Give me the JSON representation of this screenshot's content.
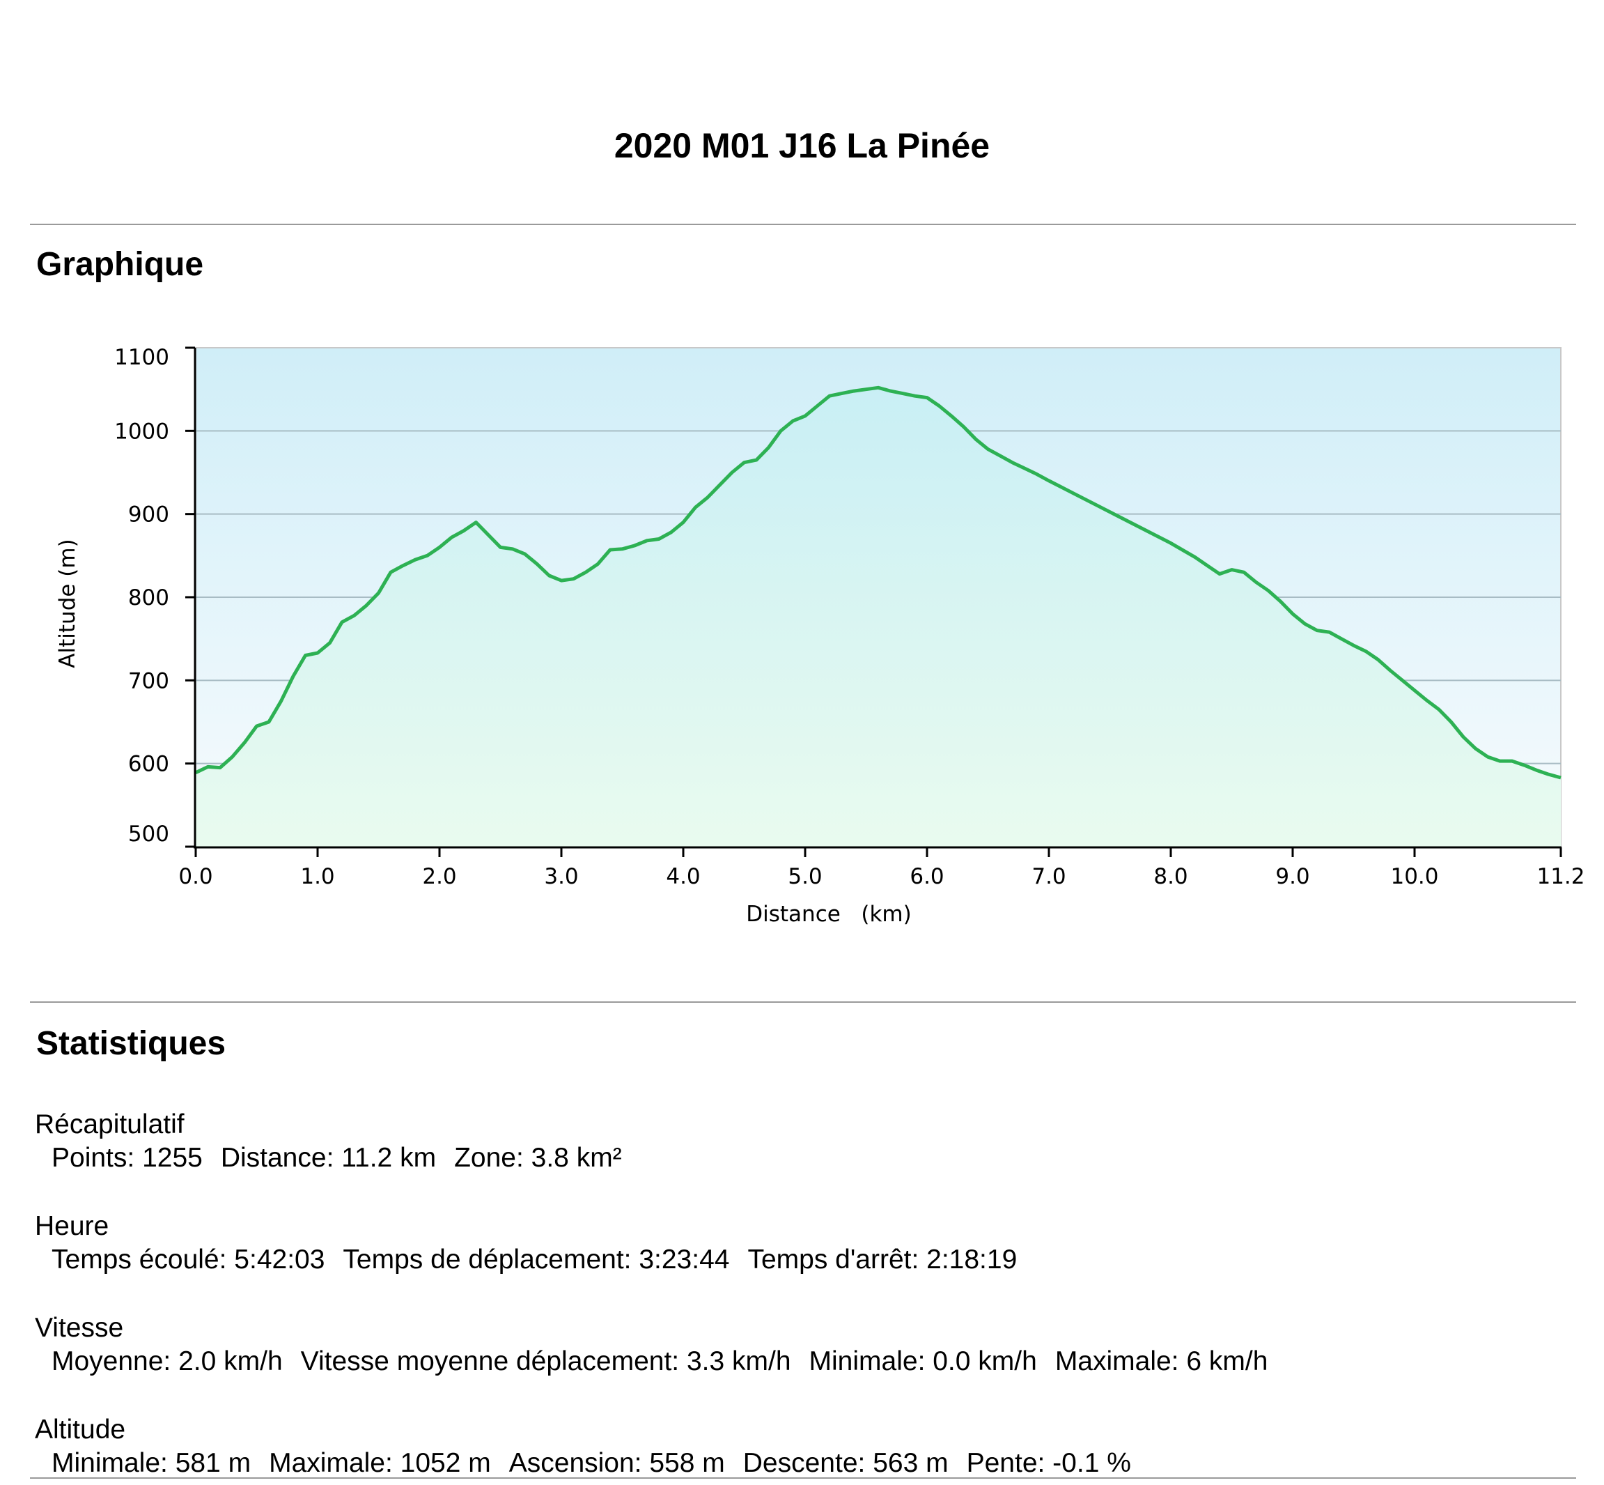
{
  "page_title": "2020 M01 J16 La Pinée",
  "sections": {
    "graph_heading": "Graphique",
    "stats_heading": "Statistiques"
  },
  "colors": {
    "line": "#2db153",
    "fill_top": "#c9eff5",
    "fill_bottom": "#e9fbef",
    "bg_top": "#d0eef8",
    "bg_bottom": "#f7fbfd",
    "grid": "#a8bcc4"
  },
  "chart_data": {
    "type": "area",
    "title": "",
    "xlabel": "Distance   (km)",
    "ylabel": "Altitude (m)",
    "xlim": [
      0,
      11.2
    ],
    "ylim": [
      500,
      1100
    ],
    "x_ticks": [
      "0.0",
      "1.0",
      "2.0",
      "3.0",
      "4.0",
      "5.0",
      "6.0",
      "7.0",
      "8.0",
      "9.0",
      "10.0",
      "11.2"
    ],
    "y_ticks": [
      "500",
      "600",
      "700",
      "800",
      "900",
      "1000",
      "1100"
    ],
    "grid": true,
    "legend": "none",
    "series": [
      {
        "x": [
          0,
          0.1,
          0.2,
          0.3,
          0.4,
          0.5,
          0.6,
          0.7,
          0.8,
          0.9,
          1.0,
          1.1,
          1.2,
          1.3,
          1.4,
          1.5,
          1.6,
          1.7,
          1.8,
          1.9,
          2.0,
          2.1,
          2.2,
          2.3,
          2.4,
          2.5,
          2.6,
          2.7,
          2.8,
          2.9,
          3.0,
          3.1,
          3.2,
          3.3,
          3.4,
          3.5,
          3.6,
          3.7,
          3.8,
          3.9,
          4.0,
          4.1,
          4.2,
          4.3,
          4.4,
          4.5,
          4.6,
          4.7,
          4.8,
          4.9,
          5.0,
          5.1,
          5.2,
          5.3,
          5.4,
          5.5,
          5.6,
          5.7,
          5.8,
          5.9,
          6.0,
          6.1,
          6.2,
          6.3,
          6.4,
          6.5,
          6.6,
          6.7,
          6.8,
          6.9,
          7.0,
          7.2,
          7.4,
          7.6,
          7.8,
          8.0,
          8.2,
          8.3,
          8.4,
          8.5,
          8.6,
          8.7,
          8.8,
          8.9,
          9.0,
          9.1,
          9.2,
          9.3,
          9.4,
          9.5,
          9.6,
          9.7,
          9.8,
          9.9,
          10.0,
          10.1,
          10.2,
          10.3,
          10.4,
          10.5,
          10.6,
          10.7,
          10.8,
          10.9,
          11.0,
          11.1,
          11.2
        ],
        "y": [
          589,
          596,
          595,
          608,
          625,
          645,
          650,
          675,
          705,
          730,
          733,
          745,
          770,
          778,
          790,
          805,
          830,
          838,
          845,
          850,
          860,
          872,
          880,
          890,
          875,
          860,
          858,
          852,
          840,
          826,
          820,
          822,
          830,
          840,
          857,
          858,
          862,
          868,
          870,
          878,
          890,
          908,
          920,
          935,
          950,
          962,
          965,
          980,
          1000,
          1012,
          1018,
          1030,
          1042,
          1045,
          1048,
          1050,
          1052,
          1048,
          1045,
          1042,
          1040,
          1030,
          1018,
          1005,
          990,
          978,
          970,
          962,
          955,
          948,
          940,
          925,
          910,
          895,
          880,
          865,
          848,
          838,
          828,
          833,
          830,
          818,
          808,
          795,
          780,
          768,
          760,
          758,
          750,
          742,
          735,
          725,
          712,
          700,
          688,
          676,
          665,
          650,
          632,
          618,
          608,
          603,
          603,
          598,
          592,
          587,
          583
        ]
      }
    ]
  },
  "stats": [
    {
      "label": "Récapitulatif",
      "items": [
        "Points: 1255",
        "Distance: 11.2 km",
        "Zone: 3.8 km²"
      ]
    },
    {
      "label": "Heure",
      "items": [
        "Temps écoulé: 5:42:03",
        "Temps de déplacement: 3:23:44",
        "Temps d'arrêt: 2:18:19"
      ]
    },
    {
      "label": "Vitesse",
      "items": [
        "Moyenne: 2.0 km/h",
        "Vitesse moyenne déplacement: 3.3 km/h",
        "Minimale: 0.0 km/h",
        "Maximale: 6 km/h"
      ]
    },
    {
      "label": "Altitude",
      "items": [
        "Minimale: 581 m",
        "Maximale: 1052 m",
        "Ascension: 558 m",
        "Descente: 563 m",
        "Pente: -0.1 %"
      ]
    }
  ]
}
